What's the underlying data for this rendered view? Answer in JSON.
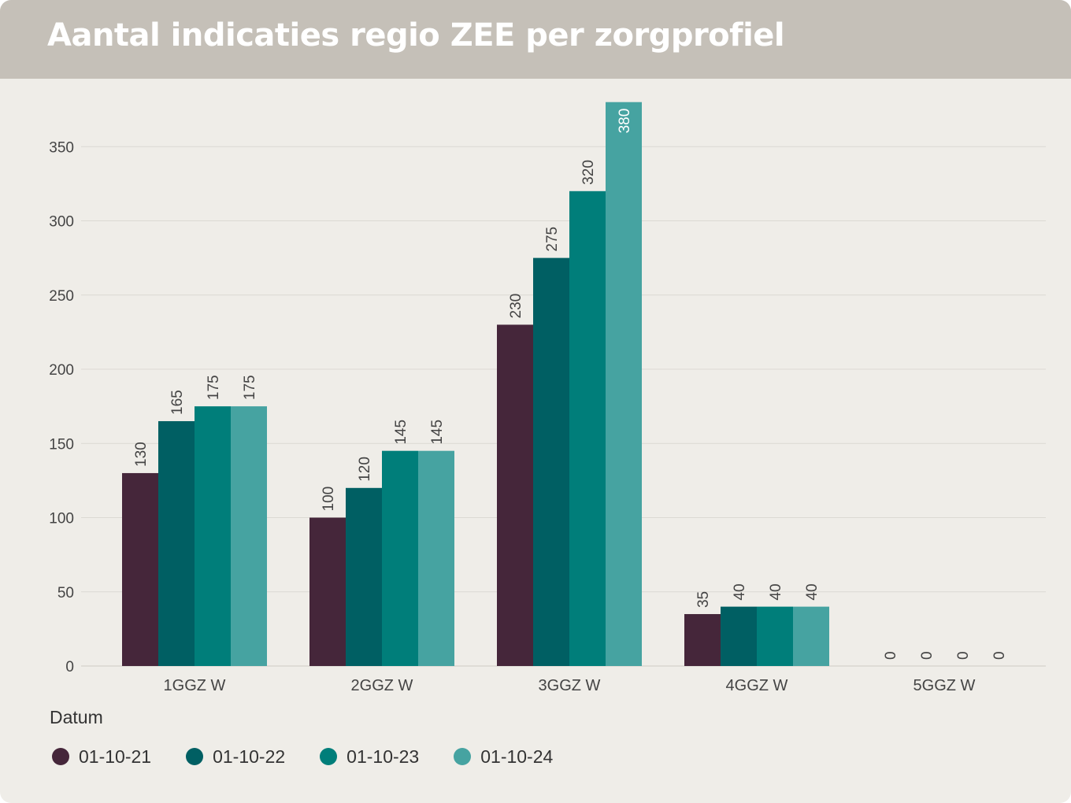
{
  "header": {
    "title": "Aantal indicaties regio ZEE per zorgprofiel"
  },
  "legend": {
    "title": "Datum"
  },
  "chart_data": {
    "type": "bar",
    "title": "Aantal indicaties regio ZEE per zorgprofiel",
    "xlabel": "",
    "ylabel": "",
    "ylim": [
      0,
      380
    ],
    "yticks": [
      0,
      50,
      100,
      150,
      200,
      250,
      300,
      350
    ],
    "grid": true,
    "legend_position": "bottom-left",
    "categories": [
      "1GGZ W",
      "2GGZ W",
      "3GGZ W",
      "4GGZ W",
      "5GGZ W"
    ],
    "series": [
      {
        "name": "01-10-21",
        "color": "#45263a",
        "values": [
          130,
          100,
          230,
          35,
          0
        ]
      },
      {
        "name": "01-10-22",
        "color": "#005f63",
        "values": [
          165,
          120,
          275,
          40,
          0
        ]
      },
      {
        "name": "01-10-23",
        "color": "#007e7a",
        "values": [
          175,
          145,
          320,
          40,
          0
        ]
      },
      {
        "name": "01-10-24",
        "color": "#46a3a1",
        "values": [
          175,
          145,
          380,
          40,
          0
        ]
      }
    ]
  }
}
